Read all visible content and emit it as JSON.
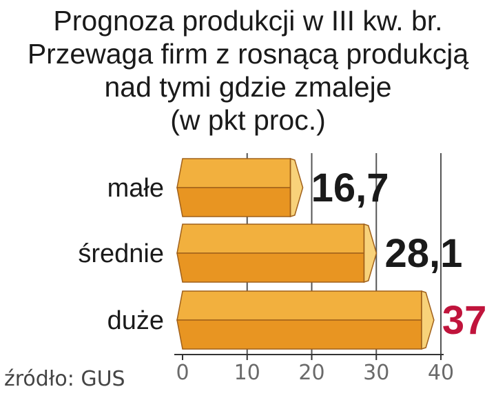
{
  "chart_data": {
    "type": "bar",
    "orientation": "horizontal",
    "title_lines": [
      "Prognoza produkcji w III kw. br.",
      "Przewaga firm z rosnącą produkcją",
      "nad tymi gdzie zmaleje",
      "(w pkt proc.)"
    ],
    "categories": [
      "małe",
      "średnie",
      "duże"
    ],
    "values": [
      16.7,
      28.1,
      37
    ],
    "value_labels": [
      "16,7",
      "28,1",
      "37"
    ],
    "value_label_colors": [
      "#1a1a1a",
      "#1a1a1a",
      "#c0143c"
    ],
    "xlim": [
      0,
      40
    ],
    "x_ticks": [
      0,
      10,
      20,
      30,
      40
    ],
    "x_tick_labels": [
      "0",
      "10",
      "20",
      "30",
      "40"
    ],
    "grid": true,
    "bar_colors": {
      "top": "#f2b03e",
      "bottom": "#e89522",
      "cap": "#f8d27a",
      "edge": "#a0601a"
    }
  },
  "source": "źródło: GUS"
}
